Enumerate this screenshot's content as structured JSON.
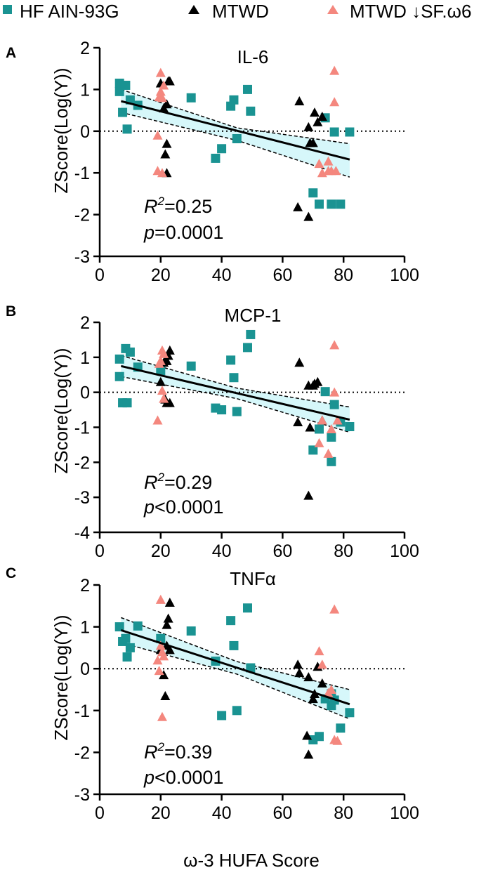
{
  "legend": {
    "entries": [
      {
        "label": "HF AIN-93G",
        "marker": "square",
        "color": "#1a9392"
      },
      {
        "label": "MTWD",
        "marker": "triangle",
        "color": "#000000"
      },
      {
        "label": "MTWD ↓SF.ω6",
        "marker": "triangle",
        "color": "#f4877e"
      }
    ]
  },
  "xlabel": "ω-3 HUFA Score",
  "colors": {
    "hf": "#1a9392",
    "mtwd": "#000000",
    "sf": "#f4877e",
    "band": "#d6f7fa"
  },
  "chart_data": [
    {
      "type": "scatter",
      "panel": "A",
      "title": "IL-6",
      "ylabel": "ZScore(Log(Y))",
      "xlim": [
        0,
        100
      ],
      "ylim": [
        -3,
        2
      ],
      "xticks": [
        "0",
        "20",
        "40",
        "60",
        "80",
        "100"
      ],
      "yticks": [
        "-3",
        "-2",
        "-1",
        "0",
        "1",
        "2"
      ],
      "r2_prefix": "R",
      "r2_sup": "2",
      "r2_value": "=0.25",
      "p_prefix": "p",
      "p_value": "=0.0001",
      "fit": {
        "x": [
          7,
          82
        ],
        "y": [
          0.72,
          -0.68
        ],
        "ci_upper": [
          1.0,
          -0.3
        ],
        "ci_lower": [
          0.45,
          -1.1
        ],
        "ci_mid_x": 45,
        "ci_mid_upper": 0.08,
        "ci_mid_lower": -0.22
      },
      "series": [
        {
          "name": "HF AIN-93G",
          "points": [
            [
              6.5,
              0.95
            ],
            [
              6.5,
              1.15
            ],
            [
              7.5,
              0.45
            ],
            [
              8.5,
              1.1
            ],
            [
              9,
              0.05
            ],
            [
              10,
              0.75
            ],
            [
              12.5,
              0.62
            ],
            [
              30,
              0.8
            ],
            [
              38,
              -0.65
            ],
            [
              40,
              -0.42
            ],
            [
              43,
              0.6
            ],
            [
              44,
              0.75
            ],
            [
              45,
              -0.18
            ],
            [
              48.5,
              1.0
            ],
            [
              49.5,
              0.48
            ],
            [
              70,
              -1.48
            ],
            [
              72,
              -1.75
            ],
            [
              74,
              0.32
            ],
            [
              76,
              -1.75
            ],
            [
              77,
              -0.02
            ],
            [
              79,
              -1.75
            ],
            [
              82,
              -0.02
            ]
          ]
        },
        {
          "name": "MTWD",
          "points": [
            [
              20,
              1.15
            ],
            [
              21,
              0.55
            ],
            [
              21.5,
              -0.55
            ],
            [
              22,
              -0.3
            ],
            [
              22,
              0.65
            ],
            [
              22,
              -1.0
            ],
            [
              22.5,
              1.2
            ],
            [
              23,
              1.2
            ],
            [
              65,
              -1.82
            ],
            [
              65.5,
              0.72
            ],
            [
              68.5,
              -2.05
            ],
            [
              68.5,
              0.1
            ],
            [
              69,
              -0.28
            ],
            [
              70,
              -0.28
            ],
            [
              70.5,
              0.45
            ],
            [
              71.5,
              0.22
            ],
            [
              73,
              0.35
            ]
          ]
        },
        {
          "name": "MTWD ↓SF.ω6",
          "points": [
            [
              19,
              -0.1
            ],
            [
              19,
              -0.95
            ],
            [
              19.5,
              0.82
            ],
            [
              20,
              1.4
            ],
            [
              20.5,
              0.8
            ],
            [
              20.5,
              -1.0
            ],
            [
              20,
              0.95
            ],
            [
              21,
              1.1
            ],
            [
              72,
              -0.78
            ],
            [
              73,
              -1.0
            ],
            [
              75,
              -0.95
            ],
            [
              75,
              -0.72
            ],
            [
              76,
              -0.95
            ],
            [
              77,
              1.45
            ],
            [
              77,
              0.7
            ],
            [
              77.5,
              -0.95
            ]
          ]
        }
      ]
    },
    {
      "type": "scatter",
      "panel": "B",
      "title": "MCP-1",
      "ylabel": "ZScore(Log(Y))",
      "xlim": [
        0,
        100
      ],
      "ylim": [
        -4,
        2
      ],
      "xticks": [
        "0",
        "20",
        "40",
        "60",
        "80",
        "100"
      ],
      "yticks": [
        "-4",
        "-3",
        "-2",
        "-1",
        "0",
        "1",
        "2"
      ],
      "r2_prefix": "R",
      "r2_sup": "2",
      "r2_value": "=0.29",
      "p_prefix": "p",
      "p_value": "<0.0001",
      "fit": {
        "x": [
          7,
          82
        ],
        "y": [
          0.75,
          -0.78
        ],
        "ci_upper": [
          1.05,
          -0.42
        ],
        "ci_lower": [
          0.45,
          -1.14
        ],
        "ci_mid_x": 45,
        "ci_mid_upper": 0.12,
        "ci_mid_lower": -0.18
      },
      "series": [
        {
          "name": "HF AIN-93G",
          "points": [
            [
              6.5,
              0.45
            ],
            [
              6.5,
              0.95
            ],
            [
              7.5,
              -0.3
            ],
            [
              8.5,
              1.25
            ],
            [
              9,
              -0.3
            ],
            [
              10,
              1.15
            ],
            [
              12.5,
              0.72
            ],
            [
              20,
              0.62
            ],
            [
              30,
              0.75
            ],
            [
              38,
              -0.45
            ],
            [
              40,
              -0.5
            ],
            [
              43,
              0.92
            ],
            [
              44,
              0.42
            ],
            [
              45,
              -0.55
            ],
            [
              48.5,
              1.28
            ],
            [
              49.5,
              1.65
            ],
            [
              70,
              -1.65
            ],
            [
              72,
              -1.05
            ],
            [
              74,
              0.02
            ],
            [
              76,
              -1.28
            ],
            [
              77,
              -0.35
            ],
            [
              79,
              -0.85
            ],
            [
              82,
              -0.98
            ],
            [
              76,
              -1.98
            ]
          ]
        },
        {
          "name": "MTWD",
          "points": [
            [
              20,
              0.3
            ],
            [
              21,
              0.85
            ],
            [
              21.5,
              -0.2
            ],
            [
              22,
              0.9
            ],
            [
              22,
              -0.3
            ],
            [
              22.5,
              1.05
            ],
            [
              23,
              -0.3
            ],
            [
              23,
              1.2
            ],
            [
              65,
              -0.85
            ],
            [
              65.5,
              0.85
            ],
            [
              68.5,
              -2.95
            ],
            [
              68.5,
              0.2
            ],
            [
              69,
              -1.0
            ],
            [
              70,
              0.2
            ],
            [
              70.5,
              0.25
            ],
            [
              71.5,
              0.3
            ],
            [
              73,
              -0.8
            ]
          ]
        },
        {
          "name": "MTWD ↓SF.ω6",
          "points": [
            [
              19,
              -0.8
            ],
            [
              19.5,
              0.82
            ],
            [
              20,
              0.9
            ],
            [
              20.5,
              1.2
            ],
            [
              20.5,
              0.05
            ],
            [
              21,
              1.1
            ],
            [
              21,
              -0.18
            ],
            [
              72,
              -1.45
            ],
            [
              73,
              -0.8
            ],
            [
              75,
              -1.75
            ],
            [
              76,
              -1.05
            ],
            [
              77,
              1.35
            ],
            [
              77,
              0.0
            ],
            [
              78,
              -0.8
            ]
          ]
        }
      ]
    },
    {
      "type": "scatter",
      "panel": "C",
      "title": "TNFα",
      "ylabel": "ZScore(Log(Y))",
      "xlim": [
        0,
        100
      ],
      "ylim": [
        -3,
        2
      ],
      "xticks": [
        "0",
        "20",
        "40",
        "60",
        "80",
        "100"
      ],
      "yticks": [
        "-3",
        "-2",
        "-1",
        "0",
        "1",
        "2"
      ],
      "r2_prefix": "R",
      "r2_sup": "2",
      "r2_value": "=0.39",
      "p_prefix": "p",
      "p_value": "<0.0001",
      "fit": {
        "x": [
          7,
          82
        ],
        "y": [
          0.92,
          -0.85
        ],
        "ci_upper": [
          1.22,
          -0.5
        ],
        "ci_lower": [
          0.62,
          -1.2
        ],
        "ci_mid_x": 45,
        "ci_mid_upper": 0.17,
        "ci_mid_lower": -0.13
      },
      "series": [
        {
          "name": "HF AIN-93G",
          "points": [
            [
              6.5,
              1.0
            ],
            [
              7.5,
              0.65
            ],
            [
              8.5,
              0.72
            ],
            [
              9,
              0.28
            ],
            [
              10,
              0.5
            ],
            [
              12.5,
              1.02
            ],
            [
              20,
              0.72
            ],
            [
              30,
              0.9
            ],
            [
              38,
              0.18
            ],
            [
              40,
              -1.12
            ],
            [
              43,
              1.15
            ],
            [
              44,
              0.55
            ],
            [
              45,
              -1.0
            ],
            [
              48.5,
              1.45
            ],
            [
              49.5,
              0.02
            ],
            [
              70,
              -1.7
            ],
            [
              72,
              -1.62
            ],
            [
              74,
              -0.72
            ],
            [
              76,
              -0.88
            ],
            [
              77,
              -0.75
            ],
            [
              79,
              -1.42
            ],
            [
              82,
              -1.05
            ],
            [
              76,
              -0.6
            ]
          ]
        },
        {
          "name": "MTWD",
          "points": [
            [
              20,
              0.45
            ],
            [
              21,
              -0.15
            ],
            [
              21.5,
              -0.65
            ],
            [
              22,
              1.05
            ],
            [
              22,
              0.55
            ],
            [
              22.5,
              1.2
            ],
            [
              23,
              1.58
            ],
            [
              23,
              0.45
            ],
            [
              65,
              0.1
            ],
            [
              65.5,
              -0.1
            ],
            [
              68.5,
              -2.05
            ],
            [
              68.5,
              -0.2
            ],
            [
              68,
              -1.6
            ],
            [
              70,
              -0.72
            ],
            [
              70.5,
              -0.6
            ],
            [
              71.5,
              0.05
            ],
            [
              73,
              -0.35
            ]
          ]
        },
        {
          "name": "MTWD ↓SF.ω6",
          "points": [
            [
              19,
              0.2
            ],
            [
              19.5,
              -0.05
            ],
            [
              20,
              0.55
            ],
            [
              20,
              1.65
            ],
            [
              20.5,
              -1.15
            ],
            [
              20.5,
              0.4
            ],
            [
              21,
              0.3
            ],
            [
              72,
              0.42
            ],
            [
              73,
              0.1
            ],
            [
              75,
              -0.58
            ],
            [
              76,
              -0.5
            ],
            [
              77,
              1.42
            ],
            [
              77,
              -1.7
            ],
            [
              78,
              -1.72
            ]
          ]
        }
      ]
    }
  ]
}
